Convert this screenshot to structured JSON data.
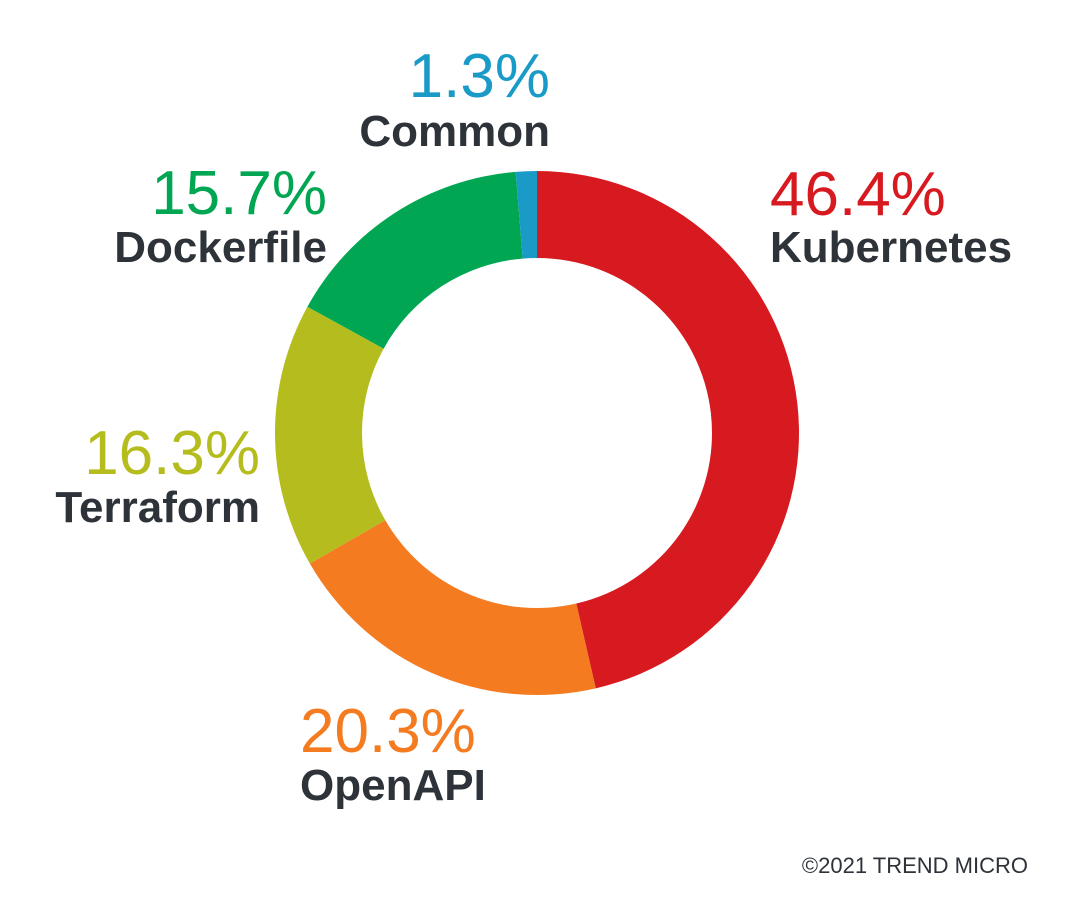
{
  "chart_data": {
    "type": "donut",
    "categories": [
      "Kubernetes",
      "OpenAPI",
      "Terraform",
      "Dockerfile",
      "Common"
    ],
    "values": [
      46.4,
      20.3,
      16.3,
      15.7,
      1.3
    ],
    "value_labels": [
      "46.4%",
      "20.3%",
      "16.3%",
      "15.7%",
      "1.3%"
    ],
    "colors": [
      "#d71920",
      "#f47b20",
      "#b5bd1e",
      "#00a651",
      "#1a9bc7"
    ]
  },
  "footer": "©2021 TREND MICRO"
}
